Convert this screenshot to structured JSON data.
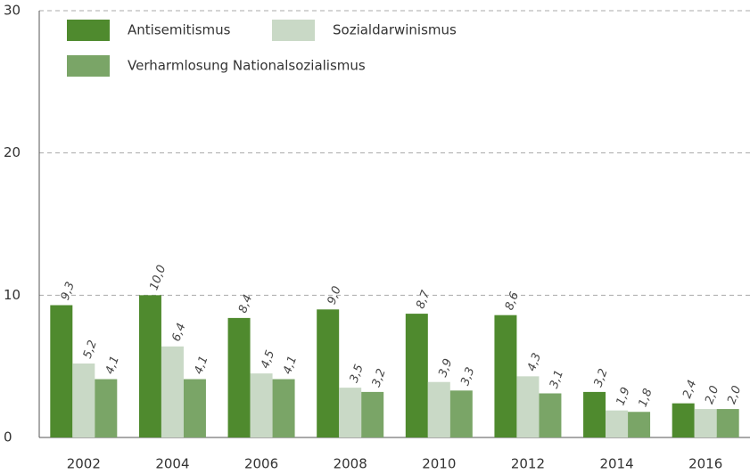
{
  "chart_data": {
    "type": "bar",
    "categories": [
      "2002",
      "2004",
      "2006",
      "2008",
      "2010",
      "2012",
      "2014",
      "2016"
    ],
    "series": [
      {
        "name": "Antisemitismus",
        "color": "#4f8a2e",
        "values": [
          9.3,
          10.0,
          8.4,
          9.0,
          8.7,
          8.6,
          3.2,
          2.4
        ],
        "value_labels": [
          "9,3",
          "10,0",
          "8,4",
          "9,0",
          "8,7",
          "8,6",
          "3,2",
          "2,4"
        ]
      },
      {
        "name": "Sozialdarwinismus",
        "color": "#c9d9c6",
        "values": [
          5.2,
          6.4,
          4.5,
          3.5,
          3.9,
          4.3,
          1.9,
          2.0
        ],
        "value_labels": [
          "5,2",
          "6,4",
          "4,5",
          "3,5",
          "3,9",
          "4,3",
          "1,9",
          "2,0"
        ]
      },
      {
        "name": "Verharmlosung Nationalsozialismus",
        "color": "#7aa567",
        "values": [
          4.1,
          4.1,
          4.1,
          3.2,
          3.3,
          3.1,
          1.8,
          2.0
        ],
        "value_labels": [
          "4,1",
          "4,1",
          "4,1",
          "3,2",
          "3,3",
          "3,1",
          "1,8",
          "2,0"
        ]
      }
    ],
    "ylim": [
      0,
      30
    ],
    "yticks": [
      0,
      10,
      20,
      30
    ],
    "grid": true,
    "legend": "top-left"
  }
}
